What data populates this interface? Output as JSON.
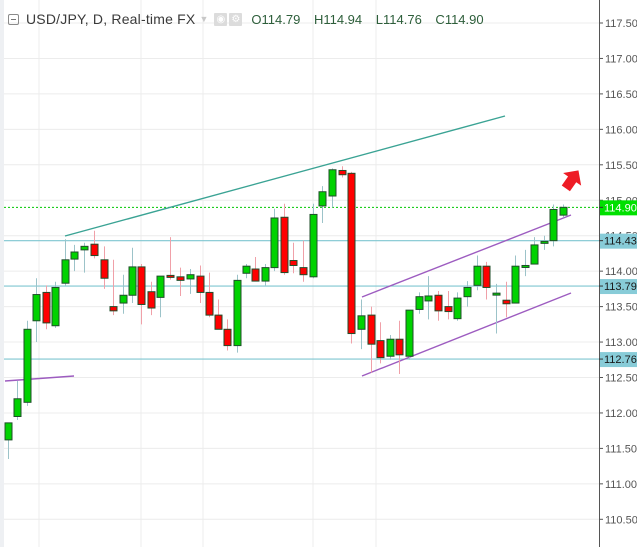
{
  "header": {
    "symbol_title": "USD/JPY, D, Real-time FX",
    "icons": [
      "collapse-icon",
      "dropdown-caret-icon",
      "eye-icon",
      "gear-icon"
    ],
    "ohlc": {
      "open_label": "O",
      "open": "114.79",
      "high_label": "H",
      "high": "114.94",
      "low_label": "L",
      "low": "114.76",
      "close_label": "C",
      "close": "114.90"
    }
  },
  "colors": {
    "up": "#00d200",
    "down": "#ff0000",
    "candle_border": "#1f4d2a",
    "wick_up": "#9cc3c9",
    "wick_down": "#f0a0a8",
    "grid": "#ececec",
    "hline": "#7fc6d1",
    "trend_teal": "#3aa394",
    "trend_purple": "#9d5cc0",
    "last_price_line": "#00c800",
    "last_price_badge": "#00e000",
    "level_badge": "#88ccd8",
    "arrow": "#ee1c25"
  },
  "chart_data": {
    "type": "candlestick",
    "title": "USD/JPY, D, Real-time FX",
    "xlabel": "",
    "ylabel": "",
    "ylim": [
      110.15,
      117.75
    ],
    "yticks": [
      "117.50",
      "117.00",
      "116.50",
      "116.00",
      "115.50",
      "115.00",
      "114.50",
      "114.00",
      "113.50",
      "113.00",
      "112.50",
      "112.00",
      "111.50",
      "111.00",
      "110.50"
    ],
    "grid": true,
    "last_price": "114.90",
    "horizontal_levels": [
      "114.43",
      "113.79",
      "112.76"
    ],
    "candles": [
      {
        "x": 8,
        "o": 111.62,
        "h": 111.85,
        "l": 111.35,
        "c": 111.86
      },
      {
        "x": 17,
        "o": 111.95,
        "h": 112.45,
        "l": 111.9,
        "c": 112.2
      },
      {
        "x": 27,
        "o": 112.15,
        "h": 113.3,
        "l": 112.1,
        "c": 113.18
      },
      {
        "x": 36,
        "o": 113.3,
        "h": 113.9,
        "l": 113.0,
        "c": 113.67
      },
      {
        "x": 46,
        "o": 113.7,
        "h": 113.8,
        "l": 113.18,
        "c": 113.27
      },
      {
        "x": 55,
        "o": 113.23,
        "h": 113.85,
        "l": 113.2,
        "c": 113.77
      },
      {
        "x": 65,
        "o": 113.83,
        "h": 114.45,
        "l": 113.8,
        "c": 114.16
      },
      {
        "x": 74,
        "o": 114.17,
        "h": 114.37,
        "l": 114.0,
        "c": 114.27
      },
      {
        "x": 84,
        "o": 114.3,
        "h": 114.4,
        "l": 113.98,
        "c": 114.35
      },
      {
        "x": 94,
        "o": 114.38,
        "h": 114.57,
        "l": 114.18,
        "c": 114.22
      },
      {
        "x": 104,
        "o": 114.16,
        "h": 114.35,
        "l": 113.75,
        "c": 113.9
      },
      {
        "x": 113,
        "o": 113.5,
        "h": 114.16,
        "l": 113.38,
        "c": 113.44
      },
      {
        "x": 123,
        "o": 113.55,
        "h": 113.95,
        "l": 113.4,
        "c": 113.66
      },
      {
        "x": 132,
        "o": 113.66,
        "h": 114.33,
        "l": 113.55,
        "c": 114.06
      },
      {
        "x": 141,
        "o": 114.06,
        "h": 114.1,
        "l": 113.25,
        "c": 113.53
      },
      {
        "x": 151,
        "o": 113.71,
        "h": 113.85,
        "l": 113.38,
        "c": 113.48
      },
      {
        "x": 160,
        "o": 113.63,
        "h": 113.93,
        "l": 113.35,
        "c": 113.93
      },
      {
        "x": 170,
        "o": 113.94,
        "h": 114.48,
        "l": 113.88,
        "c": 113.92
      },
      {
        "x": 180,
        "o": 113.92,
        "h": 114.05,
        "l": 113.65,
        "c": 113.87
      },
      {
        "x": 190,
        "o": 113.89,
        "h": 114.03,
        "l": 113.68,
        "c": 113.95
      },
      {
        "x": 200,
        "o": 113.93,
        "h": 114.08,
        "l": 113.55,
        "c": 113.7
      },
      {
        "x": 209,
        "o": 113.7,
        "h": 113.98,
        "l": 113.35,
        "c": 113.38
      },
      {
        "x": 218,
        "o": 113.38,
        "h": 113.6,
        "l": 113.2,
        "c": 113.18
      },
      {
        "x": 227,
        "o": 113.18,
        "h": 113.32,
        "l": 112.88,
        "c": 112.95
      },
      {
        "x": 237,
        "o": 112.95,
        "h": 113.95,
        "l": 112.85,
        "c": 113.87
      },
      {
        "x": 246,
        "o": 113.97,
        "h": 114.1,
        "l": 113.9,
        "c": 114.07
      },
      {
        "x": 255,
        "o": 114.03,
        "h": 114.2,
        "l": 113.93,
        "c": 113.86
      },
      {
        "x": 265,
        "o": 113.86,
        "h": 114.1,
        "l": 113.8,
        "c": 114.05
      },
      {
        "x": 274,
        "o": 114.05,
        "h": 114.88,
        "l": 114.0,
        "c": 114.75
      },
      {
        "x": 284,
        "o": 114.76,
        "h": 114.95,
        "l": 113.95,
        "c": 113.98
      },
      {
        "x": 293,
        "o": 114.15,
        "h": 114.4,
        "l": 113.97,
        "c": 114.08
      },
      {
        "x": 303,
        "o": 114.05,
        "h": 114.43,
        "l": 113.85,
        "c": 113.95
      },
      {
        "x": 313,
        "o": 113.92,
        "h": 114.95,
        "l": 113.9,
        "c": 114.8
      },
      {
        "x": 322,
        "o": 114.92,
        "h": 115.2,
        "l": 114.68,
        "c": 115.12
      },
      {
        "x": 332,
        "o": 115.06,
        "h": 115.45,
        "l": 114.9,
        "c": 115.43
      },
      {
        "x": 342,
        "o": 115.42,
        "h": 115.48,
        "l": 115.32,
        "c": 115.36
      },
      {
        "x": 351,
        "o": 115.38,
        "h": 115.4,
        "l": 112.98,
        "c": 113.12
      },
      {
        "x": 361,
        "o": 113.18,
        "h": 113.6,
        "l": 112.9,
        "c": 113.37
      },
      {
        "x": 371,
        "o": 113.38,
        "h": 113.5,
        "l": 112.57,
        "c": 112.97
      },
      {
        "x": 380,
        "o": 113.02,
        "h": 113.28,
        "l": 112.7,
        "c": 112.78
      },
      {
        "x": 390,
        "o": 112.8,
        "h": 113.1,
        "l": 112.75,
        "c": 113.04
      },
      {
        "x": 399,
        "o": 113.04,
        "h": 113.3,
        "l": 112.55,
        "c": 112.82
      },
      {
        "x": 409,
        "o": 112.8,
        "h": 113.43,
        "l": 112.75,
        "c": 113.45
      },
      {
        "x": 419,
        "o": 113.46,
        "h": 113.7,
        "l": 113.4,
        "c": 113.64
      },
      {
        "x": 428,
        "o": 113.58,
        "h": 113.93,
        "l": 113.32,
        "c": 113.65
      },
      {
        "x": 438,
        "o": 113.66,
        "h": 113.72,
        "l": 113.3,
        "c": 113.44
      },
      {
        "x": 448,
        "o": 113.5,
        "h": 113.72,
        "l": 113.32,
        "c": 113.43
      },
      {
        "x": 457,
        "o": 113.33,
        "h": 113.7,
        "l": 113.3,
        "c": 113.62
      },
      {
        "x": 467,
        "o": 113.64,
        "h": 113.86,
        "l": 113.5,
        "c": 113.77
      },
      {
        "x": 477,
        "o": 113.8,
        "h": 114.22,
        "l": 113.73,
        "c": 114.07
      },
      {
        "x": 486,
        "o": 114.07,
        "h": 114.13,
        "l": 113.6,
        "c": 113.77
      },
      {
        "x": 496,
        "o": 113.68,
        "h": 113.82,
        "l": 113.12,
        "c": 113.69
      },
      {
        "x": 506,
        "o": 113.59,
        "h": 113.85,
        "l": 113.35,
        "c": 113.54
      },
      {
        "x": 515,
        "o": 113.55,
        "h": 114.22,
        "l": 113.55,
        "c": 114.07
      },
      {
        "x": 525,
        "o": 114.08,
        "h": 114.3,
        "l": 113.93,
        "c": 114.08
      },
      {
        "x": 534,
        "o": 114.1,
        "h": 114.48,
        "l": 114.1,
        "c": 114.37
      },
      {
        "x": 544,
        "o": 114.42,
        "h": 114.5,
        "l": 114.3,
        "c": 114.42
      },
      {
        "x": 553,
        "o": 114.43,
        "h": 114.94,
        "l": 114.35,
        "c": 114.87
      },
      {
        "x": 563,
        "o": 114.79,
        "h": 114.94,
        "l": 114.76,
        "c": 114.9
      }
    ],
    "trendlines": [
      {
        "name": "upper-resistance",
        "color": "teal",
        "x1": 65,
        "y1": 236,
        "x2": 505,
        "y2": 116
      },
      {
        "name": "old-support",
        "color": "purple",
        "x1": 5,
        "y1": 381,
        "x2": 74,
        "y2": 376
      },
      {
        "name": "channel-top",
        "color": "purple",
        "x1": 362,
        "y1": 297,
        "x2": 571,
        "y2": 215
      },
      {
        "name": "channel-bottom",
        "color": "purple",
        "x1": 362,
        "y1": 376,
        "x2": 571,
        "y2": 293
      }
    ],
    "annotations": [
      {
        "type": "arrow-up-right",
        "color": "red",
        "x": 571,
        "y": 181
      }
    ]
  }
}
